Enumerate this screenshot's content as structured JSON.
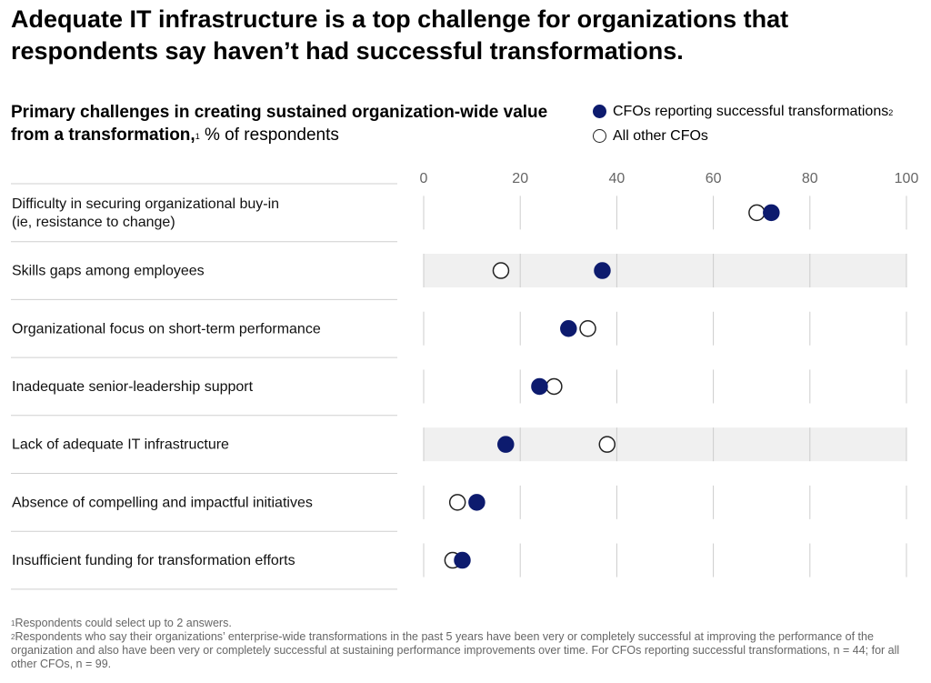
{
  "title": "Adequate IT infrastructure is a top challenge for organizations that respondents say haven’t had successful transformations.",
  "subtitle": {
    "bold": "Primary challenges in creating sustained organization-wide value from a transformation,",
    "sup": "1",
    "rest": " % of respondents"
  },
  "legend": {
    "successful": "CFOs reporting successful transformations",
    "successful_sup": "2",
    "other": "All other CFOs"
  },
  "colors": {
    "successful": "#0d1b6e",
    "other_stroke": "#222222",
    "band": "#f0f0f0",
    "grid": "#cccccc"
  },
  "chart_data": {
    "type": "scatter",
    "orientation": "horizontal-dot-plot",
    "xlim": [
      0,
      100
    ],
    "xticks": [
      0,
      20,
      40,
      60,
      80,
      100
    ],
    "highlighted_categories": [
      "Skills gaps among employees",
      "Lack of adequate IT infrastructure"
    ],
    "categories": [
      [
        "Difficulty in securing organizational buy-in",
        "(ie, resistance to change)"
      ],
      [
        "Skills gaps among employees"
      ],
      [
        "Organizational focus on short-term performance"
      ],
      [
        "Inadequate senior-leadership support"
      ],
      [
        "Lack of adequate IT infrastructure"
      ],
      [
        "Absence of compelling and impactful initiatives"
      ],
      [
        "Insufficient funding for transformation efforts"
      ]
    ],
    "series": [
      {
        "name": "CFOs reporting successful transformations",
        "values": [
          72,
          37,
          30,
          24,
          17,
          11,
          8
        ]
      },
      {
        "name": "All other CFOs",
        "values": [
          69,
          16,
          34,
          27,
          38,
          7,
          6
        ]
      }
    ]
  },
  "footnotes": [
    {
      "sup": "1",
      "text": "Respondents could select up to 2 answers."
    },
    {
      "sup": "2",
      "text": "Respondents who say their organizations’ enterprise-wide transformations in the past 5 years have been very or completely successful at improving the performance of the organization and also have been very or completely successful at sustaining performance improvements over time. For CFOs reporting successful transformations, n = 44; for all other CFOs, n = 99."
    }
  ]
}
